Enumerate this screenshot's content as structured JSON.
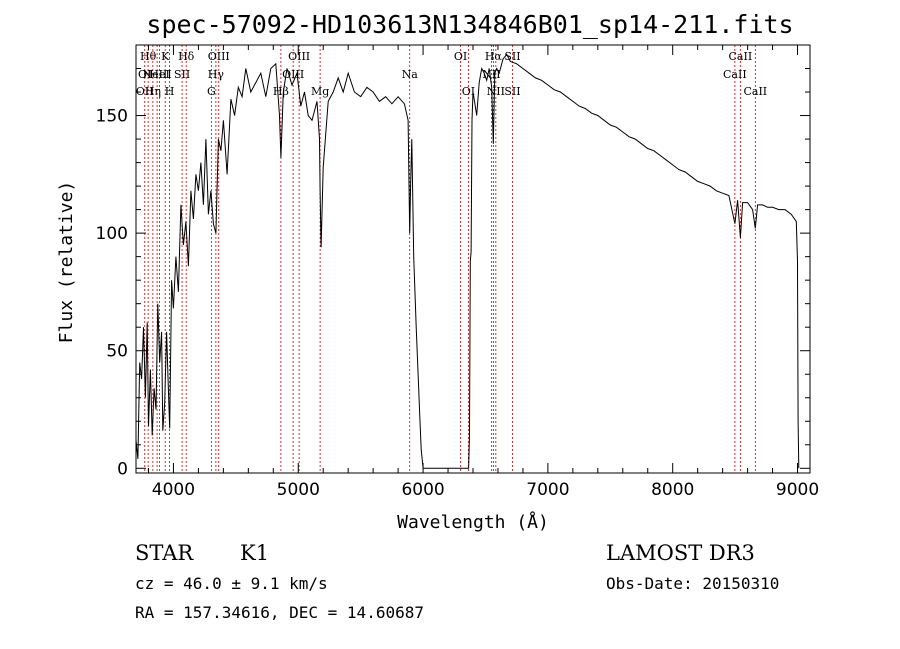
{
  "chart_data": {
    "type": "line",
    "title": "spec-57092-HD103613N134846B01_sp14-211.fits",
    "xlabel": "Wavelength (Å)",
    "ylabel": "Flux (relative)",
    "xlim": [
      3700,
      9100
    ],
    "ylim": [
      -2,
      180
    ],
    "x_ticks": [
      4000,
      5000,
      6000,
      7000,
      8000,
      9000
    ],
    "y_ticks": [
      0,
      50,
      100,
      150
    ],
    "grid": false,
    "series": [
      {
        "values": [
          [
            3700,
            12
          ],
          [
            3715,
            4
          ],
          [
            3730,
            45
          ],
          [
            3745,
            38
          ],
          [
            3760,
            60
          ],
          [
            3775,
            30
          ],
          [
            3790,
            62
          ],
          [
            3800,
            18
          ],
          [
            3815,
            42
          ],
          [
            3830,
            14
          ],
          [
            3845,
            34
          ],
          [
            3860,
            25
          ],
          [
            3875,
            70
          ],
          [
            3890,
            45
          ],
          [
            3905,
            58
          ],
          [
            3915,
            16
          ],
          [
            3930,
            28
          ],
          [
            3945,
            58
          ],
          [
            3960,
            32
          ],
          [
            3970,
            17
          ],
          [
            3985,
            80
          ],
          [
            4000,
            68
          ],
          [
            4020,
            90
          ],
          [
            4040,
            75
          ],
          [
            4060,
            112
          ],
          [
            4080,
            95
          ],
          [
            4100,
            105
          ],
          [
            4120,
            86
          ],
          [
            4140,
            118
          ],
          [
            4160,
            106
          ],
          [
            4180,
            125
          ],
          [
            4200,
            118
          ],
          [
            4220,
            130
          ],
          [
            4240,
            112
          ],
          [
            4260,
            140
          ],
          [
            4280,
            108
          ],
          [
            4300,
            118
          ],
          [
            4320,
            104
          ],
          [
            4340,
            100
          ],
          [
            4360,
            140
          ],
          [
            4380,
            135
          ],
          [
            4400,
            148
          ],
          [
            4430,
            125
          ],
          [
            4460,
            157
          ],
          [
            4490,
            150
          ],
          [
            4520,
            162
          ],
          [
            4550,
            158
          ],
          [
            4580,
            170
          ],
          [
            4620,
            160
          ],
          [
            4660,
            164
          ],
          [
            4700,
            168
          ],
          [
            4740,
            158
          ],
          [
            4780,
            170
          ],
          [
            4820,
            172
          ],
          [
            4850,
            150
          ],
          [
            4861,
            132
          ],
          [
            4880,
            160
          ],
          [
            4910,
            170
          ],
          [
            4950,
            163
          ],
          [
            4990,
            168
          ],
          [
            5020,
            154
          ],
          [
            5050,
            160
          ],
          [
            5080,
            150
          ],
          [
            5110,
            148
          ],
          [
            5150,
            156
          ],
          [
            5170,
            140
          ],
          [
            5175,
            118
          ],
          [
            5183,
            94
          ],
          [
            5200,
            128
          ],
          [
            5240,
            156
          ],
          [
            5280,
            160
          ],
          [
            5320,
            166
          ],
          [
            5360,
            160
          ],
          [
            5400,
            168
          ],
          [
            5450,
            160
          ],
          [
            5500,
            158
          ],
          [
            5550,
            162
          ],
          [
            5600,
            160
          ],
          [
            5650,
            156
          ],
          [
            5700,
            158
          ],
          [
            5750,
            155
          ],
          [
            5800,
            158
          ],
          [
            5850,
            155
          ],
          [
            5880,
            148
          ],
          [
            5893,
            100
          ],
          [
            5900,
            120
          ],
          [
            5910,
            140
          ],
          [
            5925,
            90
          ],
          [
            5945,
            60
          ],
          [
            5960,
            40
          ],
          [
            5975,
            20
          ],
          [
            5985,
            8
          ],
          [
            6000,
            0
          ],
          [
            6050,
            0
          ],
          [
            6100,
            0
          ],
          [
            6150,
            0
          ],
          [
            6200,
            0
          ],
          [
            6250,
            0
          ],
          [
            6300,
            0
          ],
          [
            6350,
            0
          ],
          [
            6365,
            0
          ],
          [
            6372,
            14
          ],
          [
            6378,
            88
          ],
          [
            6385,
            92
          ],
          [
            6392,
            148
          ],
          [
            6400,
            160
          ],
          [
            6415,
            155
          ],
          [
            6430,
            150
          ],
          [
            6450,
            164
          ],
          [
            6470,
            170
          ],
          [
            6490,
            168
          ],
          [
            6510,
            165
          ],
          [
            6530,
            170
          ],
          [
            6550,
            162
          ],
          [
            6563,
            138
          ],
          [
            6575,
            168
          ],
          [
            6590,
            170
          ],
          [
            6610,
            168
          ],
          [
            6640,
            174
          ],
          [
            6670,
            176
          ],
          [
            6700,
            173
          ],
          [
            6750,
            172
          ],
          [
            6800,
            170
          ],
          [
            6850,
            168
          ],
          [
            6900,
            166
          ],
          [
            6950,
            165
          ],
          [
            7000,
            163
          ],
          [
            7050,
            161
          ],
          [
            7100,
            160
          ],
          [
            7150,
            158
          ],
          [
            7200,
            156
          ],
          [
            7250,
            154
          ],
          [
            7300,
            153
          ],
          [
            7350,
            151
          ],
          [
            7400,
            150
          ],
          [
            7450,
            148
          ],
          [
            7500,
            146
          ],
          [
            7550,
            145
          ],
          [
            7600,
            143
          ],
          [
            7650,
            141
          ],
          [
            7700,
            140
          ],
          [
            7750,
            138
          ],
          [
            7800,
            136
          ],
          [
            7850,
            135
          ],
          [
            7900,
            133
          ],
          [
            7950,
            131
          ],
          [
            8000,
            129
          ],
          [
            8050,
            127
          ],
          [
            8100,
            126
          ],
          [
            8150,
            124
          ],
          [
            8200,
            122
          ],
          [
            8250,
            121
          ],
          [
            8300,
            120
          ],
          [
            8350,
            118
          ],
          [
            8400,
            117
          ],
          [
            8450,
            116
          ],
          [
            8498,
            104
          ],
          [
            8520,
            114
          ],
          [
            8542,
            98
          ],
          [
            8560,
            113
          ],
          [
            8600,
            113
          ],
          [
            8640,
            110
          ],
          [
            8662,
            102
          ],
          [
            8680,
            112
          ],
          [
            8720,
            112
          ],
          [
            8760,
            111
          ],
          [
            8800,
            111
          ],
          [
            8850,
            110
          ],
          [
            8900,
            110
          ],
          [
            8950,
            108
          ],
          [
            8990,
            105
          ],
          [
            9000,
            88
          ],
          [
            9005,
            20
          ],
          [
            9010,
            0
          ]
        ]
      }
    ],
    "lines": [
      {
        "x": 3770,
        "labels": [
          {
            "row": 1,
            "text": "OI"
          },
          {
            "row": 2,
            "text": "OII"
          }
        ]
      },
      {
        "x": 3797,
        "labels": [
          {
            "row": 0,
            "text": "Hθ"
          }
        ]
      },
      {
        "x": 3835,
        "labels": [
          {
            "row": 2,
            "text": "Hη"
          }
        ]
      },
      {
        "x": 3869,
        "labels": [
          {
            "row": 1,
            "text": "NeIII"
          }
        ]
      },
      {
        "x": 3889,
        "labels": [
          {
            "row": 1,
            "text": "HeI"
          }
        ]
      },
      {
        "x": 3934,
        "labels": [
          {
            "row": 0,
            "text": "K"
          }
        ]
      },
      {
        "x": 3969,
        "labels": [
          {
            "row": 2,
            "text": "H"
          }
        ]
      },
      {
        "x": 4069,
        "labels": [
          {
            "row": 1,
            "text": "SII"
          }
        ]
      },
      {
        "x": 4102,
        "labels": [
          {
            "row": 0,
            "text": "Hδ"
          }
        ]
      },
      {
        "x": 4304,
        "labels": [
          {
            "row": 2,
            "text": "G"
          }
        ]
      },
      {
        "x": 4340,
        "labels": [
          {
            "row": 1,
            "text": "Hγ"
          }
        ]
      },
      {
        "x": 4363,
        "labels": [
          {
            "row": 0,
            "text": "OIII"
          }
        ]
      },
      {
        "x": 4861,
        "labels": [
          {
            "row": 2,
            "text": "Hβ"
          }
        ]
      },
      {
        "x": 4959,
        "labels": [
          {
            "row": 1,
            "text": "OIII"
          }
        ]
      },
      {
        "x": 5007,
        "labels": [
          {
            "row": 0,
            "text": "OIII"
          }
        ]
      },
      {
        "x": 5175,
        "labels": [
          {
            "row": 2,
            "text": "Mg"
          }
        ]
      },
      {
        "x": 5893,
        "labels": [
          {
            "row": 1,
            "text": "Na"
          }
        ]
      },
      {
        "x": 6300,
        "labels": [
          {
            "row": 0,
            "text": "OI"
          }
        ]
      },
      {
        "x": 6363,
        "labels": [
          {
            "row": 2,
            "text": "OI"
          }
        ]
      },
      {
        "x": 6548,
        "labels": [
          {
            "row": 1,
            "text": "NII"
          }
        ]
      },
      {
        "x": 6563,
        "labels": [
          {
            "row": 0,
            "text": "Hα"
          }
        ]
      },
      {
        "x": 6583,
        "labels": [
          {
            "row": 2,
            "text": "NII"
          }
        ]
      },
      {
        "x": 6716,
        "labels": [
          {
            "row": 0,
            "text": "SII"
          },
          {
            "row": 2,
            "text": "SII"
          }
        ]
      },
      {
        "x": 8498,
        "labels": [
          {
            "row": 1,
            "text": "CaII"
          }
        ]
      },
      {
        "x": 8542,
        "labels": [
          {
            "row": 0,
            "text": "CaII"
          }
        ]
      },
      {
        "x": 8662,
        "labels": [
          {
            "row": 2,
            "text": "CaII"
          }
        ]
      }
    ]
  },
  "info": {
    "object_class": "STAR",
    "subclass": "K1",
    "cz": "cz = 46.0 ± 9.1 km/s",
    "coords": "RA = 157.34616, DEC =  14.60687",
    "survey": "LAMOST DR3",
    "obs_date": "Obs-Date: 20150310"
  },
  "colors": {
    "spectrum": "#000000",
    "line_markers": "#cc0000",
    "axes": "#000000"
  }
}
